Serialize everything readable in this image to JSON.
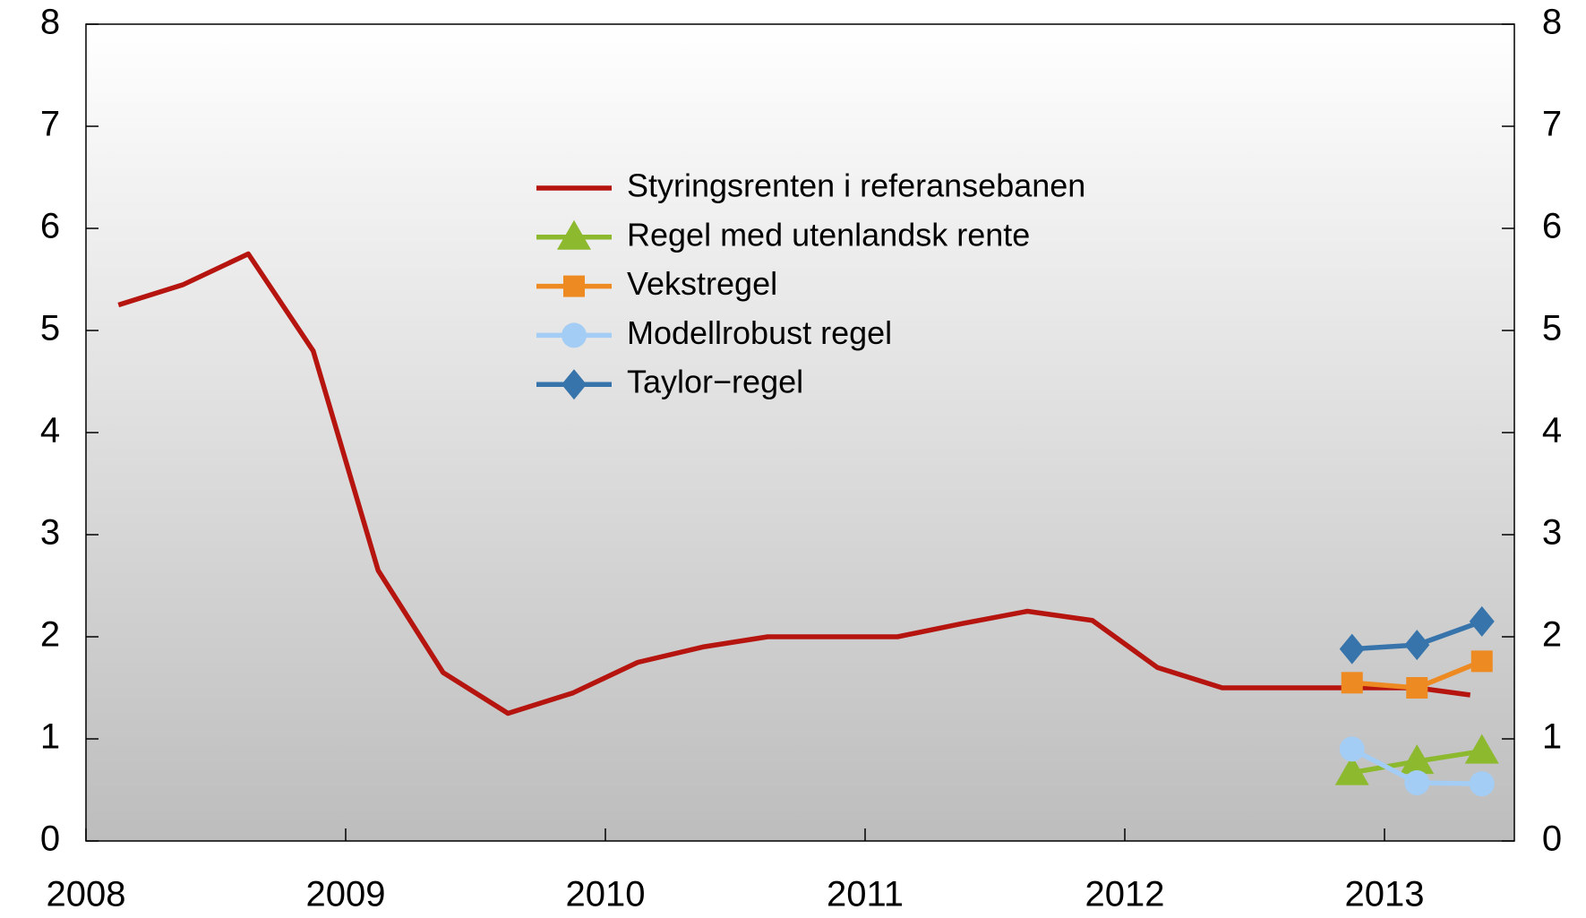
{
  "chart_data": {
    "type": "line",
    "xlim": [
      2008,
      2013.5
    ],
    "xticks": [
      2008,
      2009,
      2010,
      2011,
      2012,
      2013
    ],
    "ylim": [
      0,
      8
    ],
    "yticks": [
      0,
      1,
      2,
      3,
      4,
      5,
      6,
      7,
      8
    ],
    "series": [
      {
        "name": "Styringsrenten i referansebanen",
        "color": "#b5140f",
        "marker": "none",
        "x": [
          2008.125,
          2008.375,
          2008.625,
          2008.875,
          2009.125,
          2009.375,
          2009.625,
          2009.875,
          2010.125,
          2010.375,
          2010.625,
          2010.875,
          2011.125,
          2011.375,
          2011.625,
          2011.875,
          2012.125,
          2012.375,
          2012.625,
          2012.875,
          2013.125,
          2013.33
        ],
        "values": [
          5.25,
          5.45,
          5.75,
          4.8,
          2.65,
          1.65,
          1.25,
          1.45,
          1.75,
          1.9,
          2.0,
          2.0,
          2.0,
          2.13,
          2.25,
          2.16,
          1.7,
          1.5,
          1.5,
          1.5,
          1.5,
          1.43
        ]
      },
      {
        "name": "Regel med utenlandsk rente",
        "color": "#8db92e",
        "marker": "triangle",
        "x": [
          2012.875,
          2013.125,
          2013.375
        ],
        "values": [
          0.67,
          0.78,
          0.88
        ]
      },
      {
        "name": "Vekstregel",
        "color": "#ee8a22",
        "marker": "square",
        "x": [
          2012.875,
          2013.125,
          2013.375
        ],
        "values": [
          1.55,
          1.5,
          1.76
        ]
      },
      {
        "name": "Modellrobust regel",
        "color": "#a3cdf5",
        "marker": "circle",
        "x": [
          2012.875,
          2013.125,
          2013.375
        ],
        "values": [
          0.9,
          0.57,
          0.56
        ]
      },
      {
        "name": "Taylor−regel",
        "color": "#3674ab",
        "marker": "diamond",
        "x": [
          2012.875,
          2013.125,
          2013.375
        ],
        "values": [
          1.88,
          1.92,
          2.15
        ]
      }
    ]
  }
}
